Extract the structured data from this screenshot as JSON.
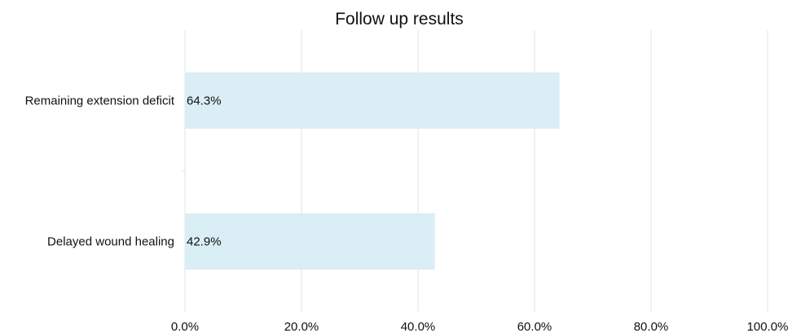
{
  "chart_data": {
    "type": "bar",
    "orientation": "horizontal",
    "title": "Follow up results",
    "xlabel": "",
    "ylabel": "",
    "categories": [
      "Remaining extension deficit",
      "Delayed wound healing"
    ],
    "values": [
      64.3,
      42.9
    ],
    "data_labels": [
      "64.3%",
      "42.9%"
    ],
    "xlim": [
      0,
      100
    ],
    "x_ticks": [
      0,
      20,
      40,
      60,
      80,
      100
    ],
    "x_tick_labels": [
      "0.0%",
      "20.0%",
      "40.0%",
      "60.0%",
      "80.0%",
      "100.0%"
    ],
    "grid": true,
    "legend": "none",
    "bar_color": "#daeef5",
    "grid_color": "#e3e3e3",
    "text_color": "#111111"
  }
}
